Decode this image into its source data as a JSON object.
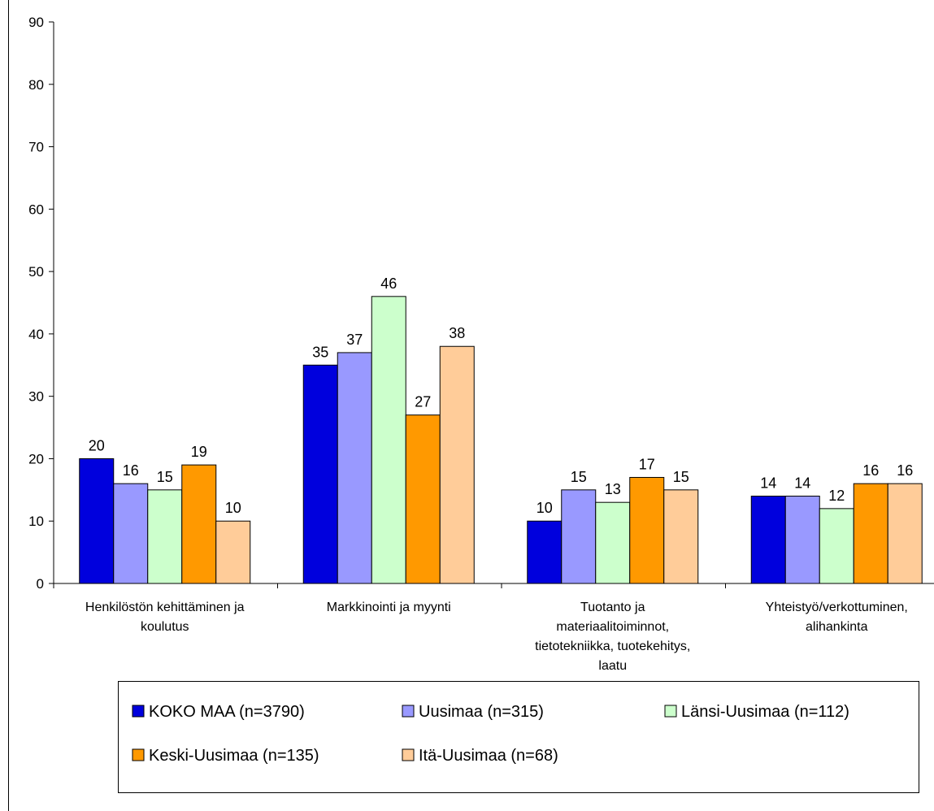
{
  "chart_data": {
    "type": "bar",
    "categories": [
      [
        "Henkilöstön kehittäminen ja",
        "koulutus"
      ],
      [
        "Markkinointi ja myynti"
      ],
      [
        "Tuotanto ja",
        "materiaalitoiminnot,",
        "tietotekniikka, tuotekehitys,",
        "laatu"
      ],
      [
        "Yhteistyö/verkottuminen,",
        "alihankinta"
      ]
    ],
    "series": [
      {
        "name": "KOKO MAA (n=3790)",
        "color": "#0000DD",
        "values": [
          20,
          35,
          10,
          14
        ]
      },
      {
        "name": "Uusimaa (n=315)",
        "color": "#9999FF",
        "values": [
          16,
          37,
          15,
          14
        ]
      },
      {
        "name": "Länsi-Uusimaa (n=112)",
        "color": "#CCFFCC",
        "values": [
          15,
          46,
          13,
          12
        ]
      },
      {
        "name": "Keski-Uusimaa (n=135)",
        "color": "#FF9900",
        "values": [
          19,
          27,
          17,
          16
        ]
      },
      {
        "name": "Itä-Uusimaa (n=68)",
        "color": "#FFCC99",
        "values": [
          10,
          38,
          15,
          16
        ]
      }
    ],
    "ylim": [
      0,
      90
    ],
    "yticks": [
      0,
      10,
      20,
      30,
      40,
      50,
      60,
      70,
      80,
      90
    ],
    "title": "",
    "xlabel": "",
    "ylabel": "",
    "grid": false,
    "legend_position": "bottom"
  }
}
